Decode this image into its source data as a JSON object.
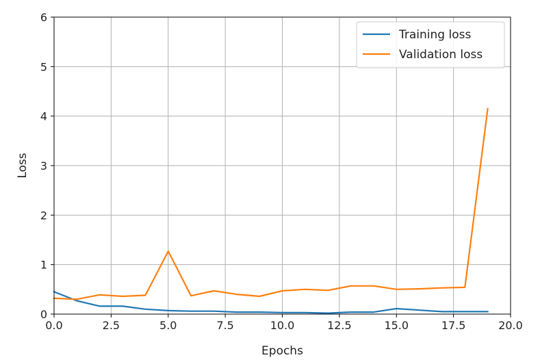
{
  "chart_data": {
    "type": "line",
    "title": "",
    "xlabel": "Epochs",
    "ylabel": "Loss",
    "xlim": [
      0,
      20
    ],
    "ylim": [
      0,
      6
    ],
    "xticks": [
      0,
      2.5,
      5,
      7.5,
      10,
      12.5,
      15,
      17.5,
      20
    ],
    "xtick_labels": [
      "0.0",
      "2.5",
      "5.0",
      "7.5",
      "10.0",
      "12.5",
      "15.0",
      "17.5",
      "20.0"
    ],
    "yticks": [
      0,
      1,
      2,
      3,
      4,
      5,
      6
    ],
    "ytick_labels": [
      "0",
      "1",
      "2",
      "3",
      "4",
      "5",
      "6"
    ],
    "grid": true,
    "legend_position": "top-right",
    "x": [
      0,
      1,
      2,
      3,
      4,
      5,
      6,
      7,
      8,
      9,
      10,
      11,
      12,
      13,
      14,
      15,
      16,
      17,
      18,
      19
    ],
    "series": [
      {
        "name": "Training loss",
        "color": "#1f77b4",
        "values": [
          0.45,
          0.27,
          0.16,
          0.16,
          0.1,
          0.07,
          0.06,
          0.06,
          0.04,
          0.04,
          0.03,
          0.03,
          0.02,
          0.04,
          0.04,
          0.11,
          0.08,
          0.05,
          0.05,
          0.05
        ]
      },
      {
        "name": "Validation loss",
        "color": "#ff7f0e",
        "values": [
          0.32,
          0.3,
          0.39,
          0.36,
          0.38,
          1.27,
          0.37,
          0.47,
          0.4,
          0.36,
          0.47,
          0.5,
          0.48,
          0.57,
          0.57,
          0.5,
          0.51,
          0.53,
          0.54,
          4.15
        ]
      }
    ]
  }
}
